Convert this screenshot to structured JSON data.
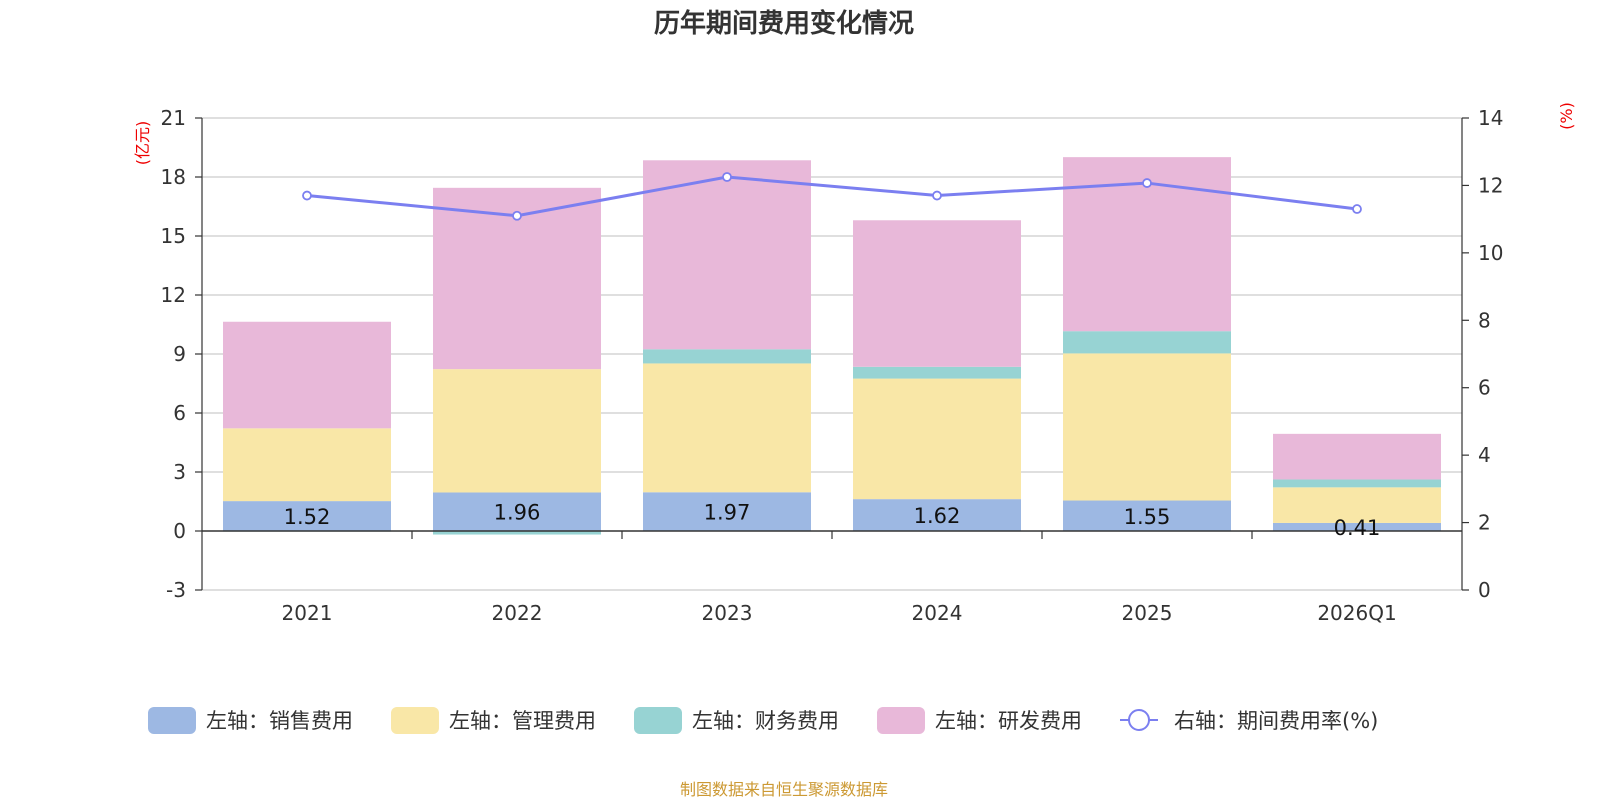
{
  "chart_data": {
    "type": "bar",
    "stacked": true,
    "title": "历年期间费用变化情况",
    "categories": [
      "2021",
      "2022",
      "2023",
      "2024",
      "2025",
      "2026Q1"
    ],
    "left_axis": {
      "unit": "(亿元)",
      "ylim": [
        -3,
        21
      ],
      "ticks": [
        -3,
        0,
        3,
        6,
        9,
        12,
        15,
        18,
        21
      ]
    },
    "right_axis": {
      "unit": "(%)",
      "ylim": [
        0,
        14
      ],
      "ticks": [
        0,
        2,
        4,
        6,
        8,
        10,
        12,
        14
      ]
    },
    "series": [
      {
        "name": "左轴：销售费用",
        "color": "#9db8e3",
        "axis": "left",
        "values": [
          1.52,
          1.96,
          1.97,
          1.62,
          1.55,
          0.41
        ],
        "labels": [
          "1.52",
          "1.96",
          "1.97",
          "1.62",
          "1.55",
          "0.41"
        ]
      },
      {
        "name": "左轴：管理费用",
        "color": "#f9e7a7",
        "axis": "left",
        "values": [
          3.7,
          6.27,
          6.55,
          6.13,
          7.48,
          1.81
        ]
      },
      {
        "name": "左轴：财务费用",
        "color": "#97d3d3",
        "axis": "left",
        "values": [
          -0.03,
          -0.18,
          0.72,
          0.6,
          1.13,
          0.4
        ]
      },
      {
        "name": "左轴：研发费用",
        "color": "#e8b8d9",
        "axis": "left",
        "values": [
          5.42,
          9.22,
          9.61,
          7.45,
          8.85,
          2.32
        ]
      },
      {
        "name": "右轴：期间费用率(%)",
        "color": "#7b7ff0",
        "axis": "right",
        "type": "line",
        "values": [
          11.7,
          11.1,
          12.25,
          11.7,
          12.07,
          11.3
        ]
      }
    ],
    "legend_position": "bottom",
    "source_note": "制图数据来自恒生聚源数据库"
  }
}
